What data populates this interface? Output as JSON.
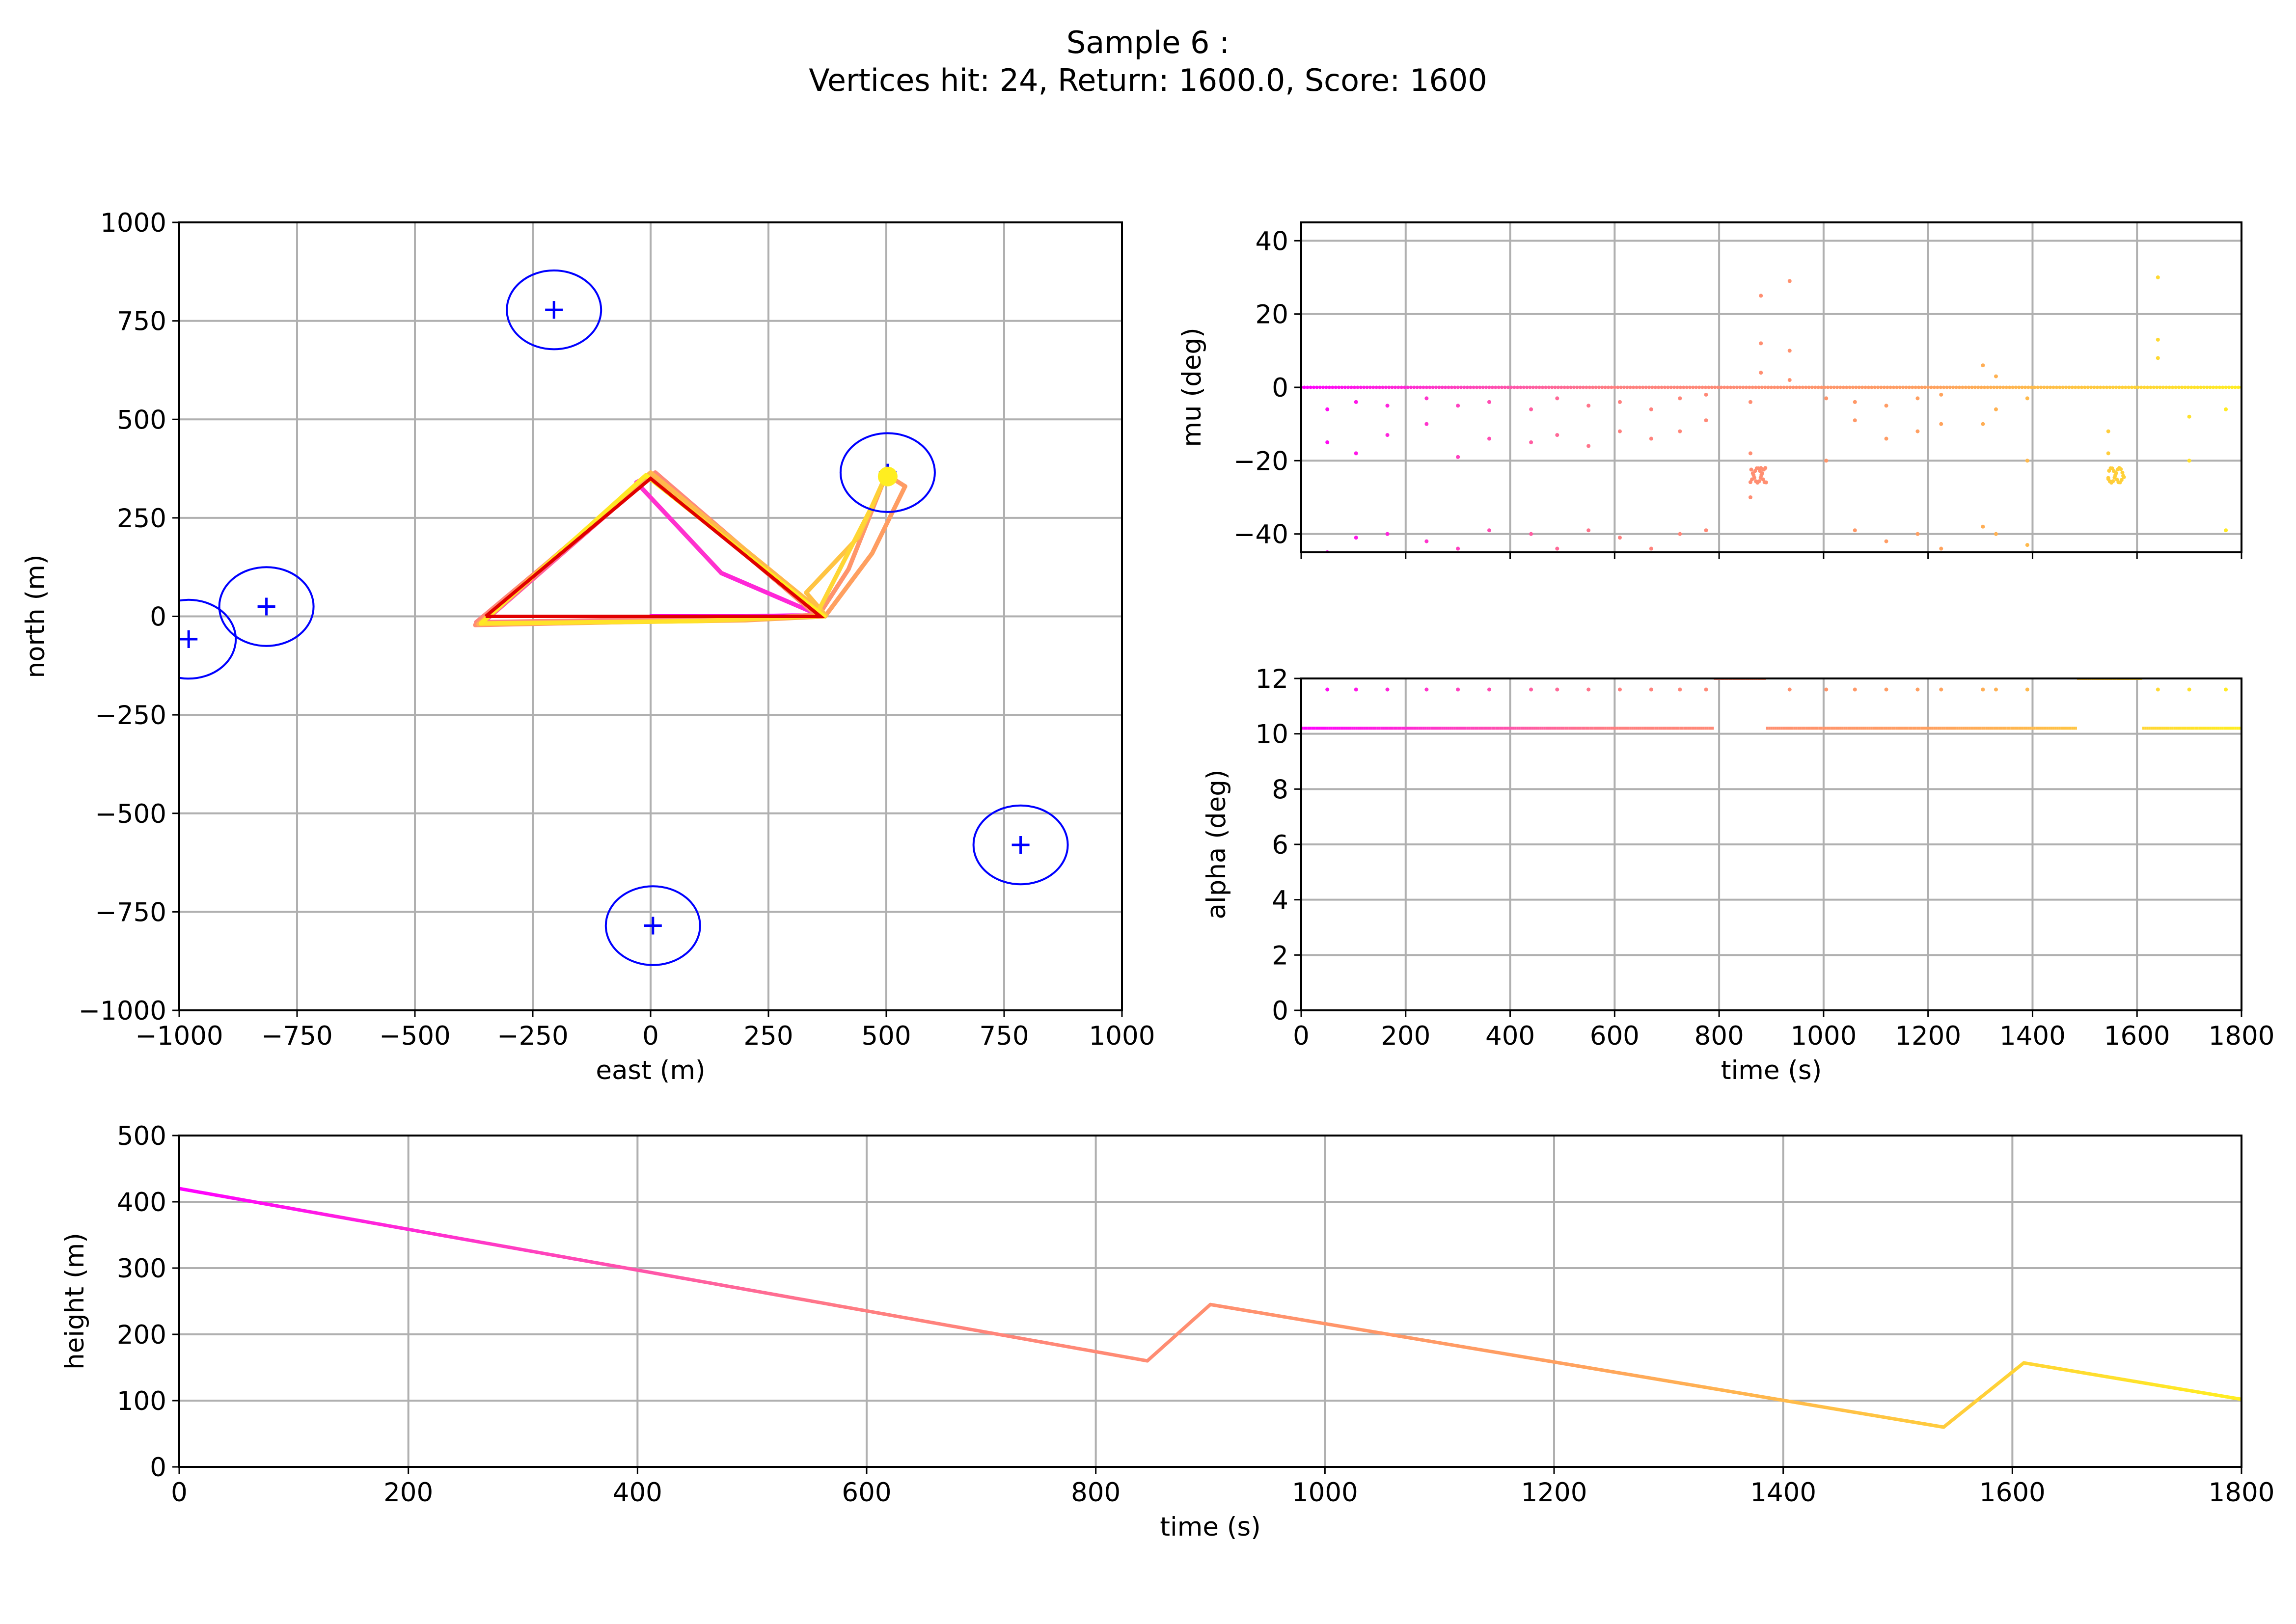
{
  "figure": {
    "title_line1": "Sample 6 :",
    "title_line2": "Vertices hit: 24, Return: 1600.0, Score: 1600"
  },
  "colors": {
    "gradient": [
      "#ff00ff",
      "#ff7f80",
      "#ffa060",
      "#ffee20"
    ],
    "target": "#0000ff",
    "reference": "#e00000"
  },
  "chart_data": [
    {
      "id": "map",
      "type": "line",
      "xlabel": "east (m)",
      "ylabel": "north (m)",
      "xlim": [
        -1000,
        1000
      ],
      "ylim": [
        -1000,
        1000
      ],
      "xticks": [
        -1000,
        -750,
        -500,
        -250,
        0,
        250,
        500,
        750,
        1000
      ],
      "yticks": [
        -1000,
        -750,
        -500,
        -250,
        0,
        250,
        500,
        750,
        1000
      ],
      "grid": true,
      "targets": [
        {
          "x": -205,
          "y": 778,
          "radius": 100
        },
        {
          "x": -815,
          "y": 25,
          "radius": 100
        },
        {
          "x": -980,
          "y": -58,
          "radius": 100
        },
        {
          "x": 503,
          "y": 365,
          "radius": 100
        },
        {
          "x": 785,
          "y": -580,
          "radius": 100
        },
        {
          "x": 5,
          "y": -785,
          "radius": 100
        }
      ],
      "reference_path": [
        [
          -350,
          0
        ],
        [
          0,
          350
        ],
        [
          360,
          0
        ],
        [
          -350,
          0
        ]
      ],
      "trajectory": [
        [
          0,
          0
        ],
        [
          100,
          0
        ],
        [
          200,
          0
        ],
        [
          300,
          2
        ],
        [
          360,
          2
        ],
        [
          150,
          110
        ],
        [
          -30,
          340
        ],
        [
          0,
          360
        ],
        [
          365,
          0
        ],
        [
          -365,
          -20
        ],
        [
          -350,
          -10
        ],
        [
          0,
          355
        ],
        [
          370,
          0
        ],
        [
          150,
          -5
        ],
        [
          -370,
          -15
        ],
        [
          -360,
          -5
        ],
        [
          10,
          365
        ],
        [
          360,
          5
        ],
        [
          200,
          -8
        ],
        [
          -372,
          -22
        ],
        [
          0,
          362
        ],
        [
          355,
          0
        ],
        [
          420,
          120
        ],
        [
          480,
          300
        ],
        [
          500,
          360
        ],
        [
          540,
          330
        ],
        [
          470,
          160
        ],
        [
          370,
          0
        ],
        [
          200,
          -10
        ],
        [
          -365,
          -20
        ],
        [
          0,
          365
        ],
        [
          372,
          2
        ],
        [
          330,
          60
        ],
        [
          440,
          200
        ],
        [
          500,
          360
        ],
        [
          470,
          280
        ],
        [
          350,
          0
        ],
        [
          100,
          -12
        ],
        [
          -360,
          -18
        ],
        [
          -10,
          358
        ],
        [
          368,
          0
        ]
      ]
    },
    {
      "id": "mu",
      "type": "scatter",
      "xlabel": "",
      "ylabel": "mu (deg)",
      "xlim": [
        0,
        1800
      ],
      "ylim": [
        -45,
        45
      ],
      "yticks": [
        -40,
        -20,
        0,
        20,
        40
      ],
      "grid": true,
      "baseline": 0,
      "spikes": [
        {
          "t": 50,
          "v": [
            -6,
            -15,
            -45
          ]
        },
        {
          "t": 105,
          "v": [
            -4,
            -18,
            -41
          ]
        },
        {
          "t": 165,
          "v": [
            -5,
            -13,
            -40
          ]
        },
        {
          "t": 240,
          "v": [
            -3,
            -10,
            -42
          ]
        },
        {
          "t": 300,
          "v": [
            -5,
            -19,
            -44
          ]
        },
        {
          "t": 360,
          "v": [
            -4,
            -14,
            -39
          ]
        },
        {
          "t": 440,
          "v": [
            -6,
            -15,
            -40
          ]
        },
        {
          "t": 490,
          "v": [
            -3,
            -13,
            -44
          ]
        },
        {
          "t": 550,
          "v": [
            -5,
            -16,
            -39
          ]
        },
        {
          "t": 610,
          "v": [
            -4,
            -12,
            -41
          ]
        },
        {
          "t": 670,
          "v": [
            -6,
            -14,
            -44
          ]
        },
        {
          "t": 725,
          "v": [
            -3,
            -12,
            -40
          ]
        },
        {
          "t": 775,
          "v": [
            -2,
            -9,
            -39
          ]
        },
        {
          "t": 860,
          "v": [
            -4,
            -18,
            -30
          ]
        },
        {
          "t": 880,
          "v": [
            25,
            12,
            4,
            -22
          ]
        },
        {
          "t": 935,
          "v": [
            29,
            10,
            2
          ]
        },
        {
          "t": 1005,
          "v": [
            -3,
            -20
          ]
        },
        {
          "t": 1060,
          "v": [
            -4,
            -9,
            -39
          ]
        },
        {
          "t": 1120,
          "v": [
            -5,
            -14,
            -42
          ]
        },
        {
          "t": 1180,
          "v": [
            -3,
            -12,
            -40
          ]
        },
        {
          "t": 1225,
          "v": [
            -2,
            -10,
            -44
          ]
        },
        {
          "t": 1305,
          "v": [
            6,
            -10,
            -38
          ]
        },
        {
          "t": 1330,
          "v": [
            3,
            -6,
            -40
          ]
        },
        {
          "t": 1390,
          "v": [
            -3,
            -20,
            -43
          ]
        },
        {
          "t": 1545,
          "v": [
            -12,
            -18,
            -25
          ]
        },
        {
          "t": 1640,
          "v": [
            30,
            13,
            8
          ]
        },
        {
          "t": 1700,
          "v": [
            -8,
            -20
          ]
        },
        {
          "t": 1770,
          "v": [
            -6,
            -39
          ]
        }
      ],
      "clusters": [
        {
          "t_start": 860,
          "t_end": 890,
          "v": -24
        },
        {
          "t_start": 1545,
          "t_end": 1575,
          "v": -24
        }
      ]
    },
    {
      "id": "alpha",
      "type": "scatter",
      "xlabel": "time (s)",
      "ylabel": "alpha (deg)",
      "xlim": [
        0,
        1800
      ],
      "ylim": [
        0,
        12
      ],
      "xticks": [
        0,
        200,
        400,
        600,
        800,
        1000,
        1200,
        1400,
        1600,
        1800
      ],
      "yticks": [
        0,
        2,
        4,
        6,
        8,
        10,
        12
      ],
      "grid": true,
      "segments": [
        {
          "t_start": 0,
          "t_end": 790,
          "v": 10.2
        },
        {
          "t_start": 790,
          "t_end": 890,
          "v": 12.0
        },
        {
          "t_start": 890,
          "t_end": 1485,
          "v": 10.2
        },
        {
          "t_start": 1485,
          "t_end": 1610,
          "v": 12.0
        },
        {
          "t_start": 1610,
          "t_end": 1800,
          "v": 10.2
        }
      ],
      "upper_dots": [
        50,
        105,
        165,
        240,
        300,
        360,
        440,
        490,
        550,
        610,
        670,
        725,
        775,
        935,
        1005,
        1060,
        1120,
        1180,
        1225,
        1305,
        1330,
        1390,
        1640,
        1700,
        1770
      ],
      "upper_value": 11.6
    },
    {
      "id": "height",
      "type": "line",
      "xlabel": "time (s)",
      "ylabel": "height (m)",
      "xlim": [
        0,
        1800
      ],
      "ylim": [
        0,
        500
      ],
      "xticks": [
        0,
        200,
        400,
        600,
        800,
        1000,
        1200,
        1400,
        1600,
        1800
      ],
      "yticks": [
        0,
        100,
        200,
        300,
        400,
        500
      ],
      "grid": true,
      "points": [
        [
          0,
          420
        ],
        [
          845,
          160
        ],
        [
          900,
          245
        ],
        [
          1540,
          60
        ],
        [
          1610,
          157
        ],
        [
          1800,
          102
        ]
      ]
    }
  ]
}
